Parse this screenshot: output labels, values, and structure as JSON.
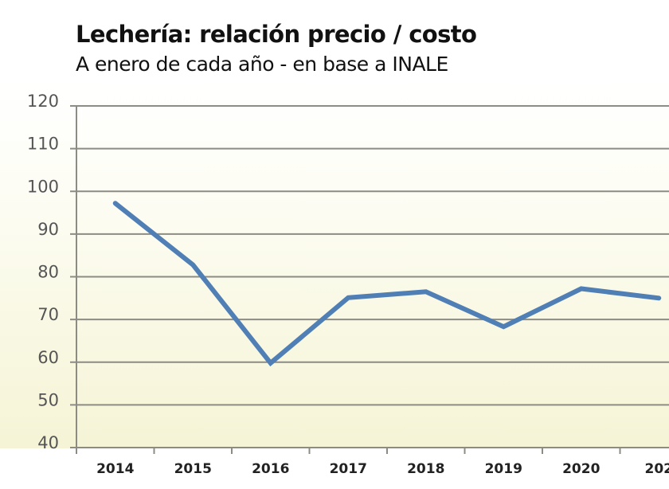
{
  "chart_data": {
    "type": "line",
    "title": "Lechería: relación precio / costo",
    "subtitle": "A enero de cada año - en base a INALE",
    "xlabel": "",
    "ylabel": "",
    "categories": [
      "2014",
      "2015",
      "2016",
      "2017",
      "2018",
      "2019",
      "2020",
      "202"
    ],
    "series": [
      {
        "name": "Relación precio / costo",
        "values": [
          97.2,
          82.8,
          59.8,
          75.1,
          76.5,
          68.3,
          77.2,
          75.0
        ],
        "color": "#4f7fb5"
      }
    ],
    "ylim": [
      40,
      120
    ],
    "yticks": [
      "120",
      "110",
      "100",
      "90",
      "80",
      "70",
      "60",
      "50",
      "40"
    ],
    "grid": true,
    "legend": "none"
  },
  "colors": {
    "line": "#4f7fb5",
    "grid": "#8c8c84",
    "axis": "#8c8c84"
  }
}
